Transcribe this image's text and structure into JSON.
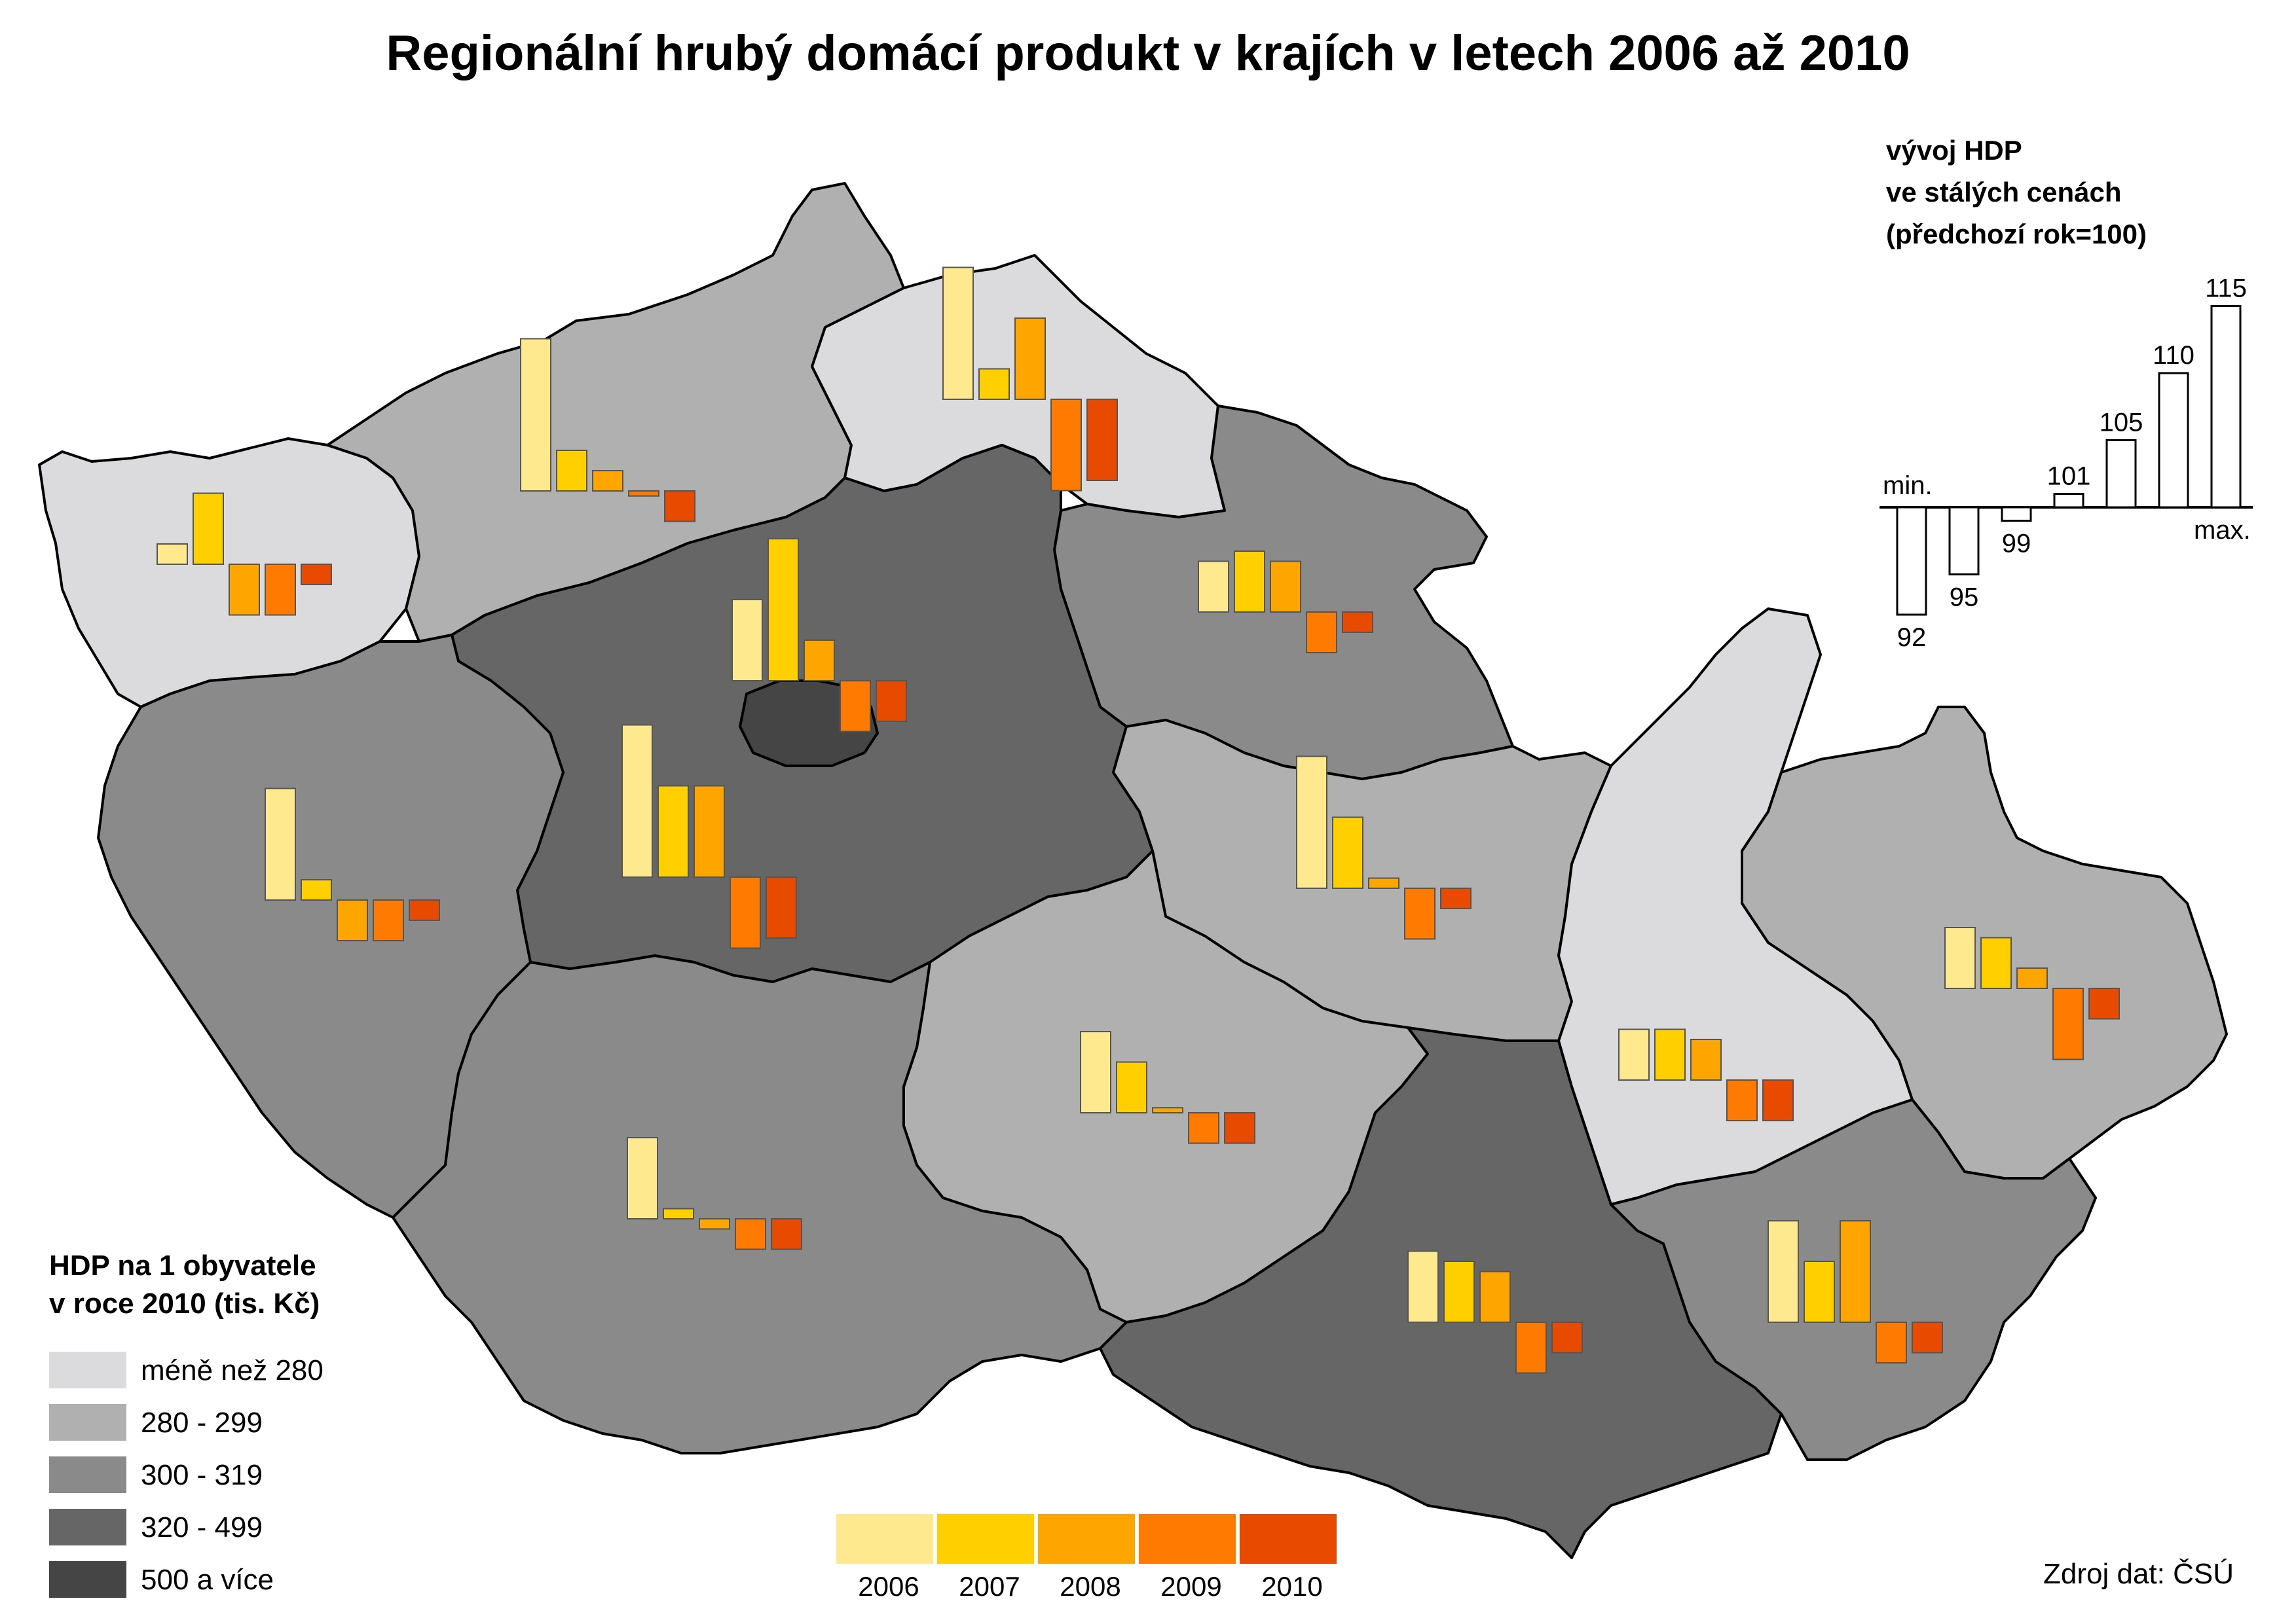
{
  "title": "Regionální hrubý domácí produkt v krajích v letech 2006 až 2010",
  "legend": {
    "title_line1": "HDP na 1 obyvatele",
    "title_line2": "v roce 2010 (tis. Kč)",
    "classes": [
      {
        "label": "méně než 280",
        "color": "#DBDBDD"
      },
      {
        "label": "280 - 299",
        "color": "#B0B0B0"
      },
      {
        "label": "300 - 319",
        "color": "#8A8A8A"
      },
      {
        "label": "320 - 499",
        "color": "#666666"
      },
      {
        "label": "500 a více",
        "color": "#454545"
      }
    ]
  },
  "years": [
    {
      "label": "2006",
      "color": "#FFE98F"
    },
    {
      "label": "2007",
      "color": "#FFCF00"
    },
    {
      "label": "2008",
      "color": "#FFA500"
    },
    {
      "label": "2009",
      "color": "#FF7A00"
    },
    {
      "label": "2010",
      "color": "#E84A00"
    }
  ],
  "index_key": {
    "title_line1": "vývoj HDP",
    "title_line2": "ve stálých cenách",
    "title_line3": "(předchozí rok=100)",
    "min_label": "min.",
    "max_label": "max.",
    "values": [
      92,
      95,
      99,
      101,
      105,
      110,
      115
    ]
  },
  "source": "Zdroj dat: ČSÚ",
  "regions": [
    {
      "id": "karlovarsky",
      "class": 0,
      "values": [
        102,
        107,
        95,
        95,
        98
      ]
    },
    {
      "id": "ustecky",
      "class": 1,
      "values": [
        115,
        104,
        102,
        99.5,
        97
      ]
    },
    {
      "id": "liberecky",
      "class": 0,
      "values": [
        113,
        103,
        108,
        91,
        92
      ]
    },
    {
      "id": "kralovehradecky",
      "class": 2,
      "values": [
        105,
        106,
        105,
        96,
        98
      ]
    },
    {
      "id": "praha",
      "class": 4,
      "values": [
        108,
        114,
        104,
        95,
        96
      ]
    },
    {
      "id": "stredocesky",
      "class": 3,
      "values": [
        115,
        109,
        109,
        93,
        94
      ]
    },
    {
      "id": "plzensky",
      "class": 2,
      "values": [
        111,
        102,
        96,
        96,
        98
      ]
    },
    {
      "id": "pardubicky",
      "class": 1,
      "values": [
        113,
        107,
        101,
        95,
        98
      ]
    },
    {
      "id": "vysocina",
      "class": 1,
      "values": [
        108,
        105,
        100.5,
        97,
        97
      ]
    },
    {
      "id": "jihocesky",
      "class": 2,
      "values": [
        108,
        101,
        99,
        97,
        97
      ]
    },
    {
      "id": "jihomoravsky",
      "class": 3,
      "values": [
        107,
        106,
        105,
        95,
        97
      ]
    },
    {
      "id": "olomoucky",
      "class": 0,
      "values": [
        105,
        105,
        104,
        96,
        96
      ]
    },
    {
      "id": "moravskoslezsky",
      "class": 1,
      "values": [
        106,
        105,
        102,
        93,
        97
      ]
    },
    {
      "id": "zlinsky",
      "class": 2,
      "values": [
        110,
        106,
        110,
        96,
        97
      ]
    }
  ]
}
